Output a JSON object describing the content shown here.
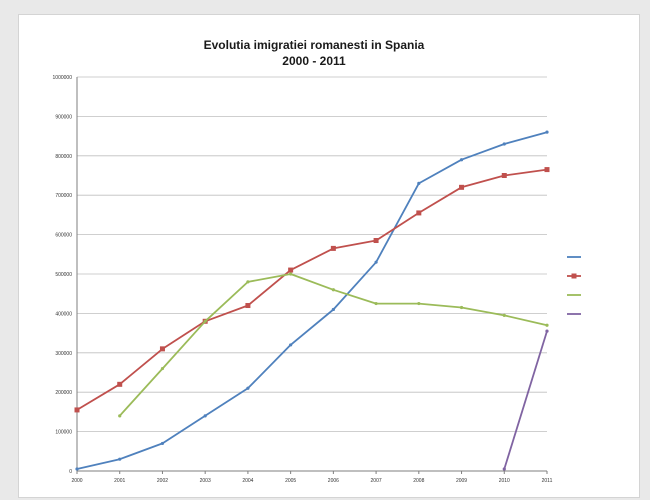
{
  "chart_data": {
    "type": "line",
    "title": "Evolutia imigratiei romanesti in Spania",
    "subtitle": "2000 - 2011",
    "xlabel": "",
    "ylabel": "",
    "x": [
      2000,
      2001,
      2002,
      2003,
      2004,
      2005,
      2006,
      2007,
      2008,
      2009,
      2010,
      2011
    ],
    "ylim": [
      0,
      1000000
    ],
    "yticks": [
      0,
      100000,
      200000,
      300000,
      400000,
      500000,
      600000,
      700000,
      800000,
      900000,
      1000000
    ],
    "ytick_labels": [
      "0",
      "100000",
      "200000",
      "300000",
      "400000",
      "500000",
      "600000",
      "700000",
      "800000",
      "900000",
      "1000000"
    ],
    "grid": true,
    "legend_position": "right",
    "series": [
      {
        "name": "",
        "color": "#4f81bd",
        "marker": "none",
        "values": [
          5000,
          30000,
          70000,
          140000,
          210000,
          320000,
          410000,
          530000,
          730000,
          790000,
          830000,
          860000
        ]
      },
      {
        "name": "",
        "color": "#c0504d",
        "marker": "square",
        "values": [
          155000,
          220000,
          310000,
          380000,
          420000,
          510000,
          565000,
          585000,
          655000,
          720000,
          750000,
          765000
        ]
      },
      {
        "name": "",
        "color": "#9bbb59",
        "marker": "none",
        "values": [
          null,
          140000,
          260000,
          380000,
          480000,
          500000,
          460000,
          425000,
          425000,
          415000,
          395000,
          370000
        ]
      },
      {
        "name": "",
        "color": "#8064a2",
        "marker": "none",
        "values": [
          null,
          null,
          null,
          null,
          null,
          null,
          null,
          null,
          null,
          null,
          5000,
          355000
        ]
      }
    ],
    "note": ""
  }
}
